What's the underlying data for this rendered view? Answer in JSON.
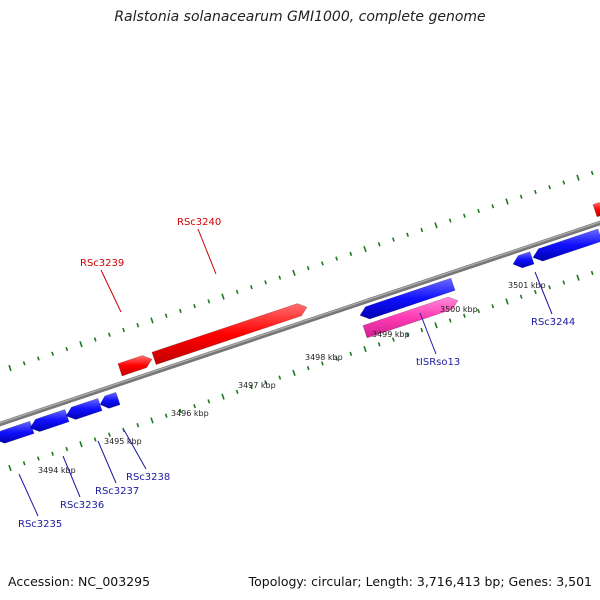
{
  "title": "Ralstonia solanacearum GMI1000, complete genome",
  "footer": {
    "accession": "Accession: NC_003295",
    "summary": "Topology: circular; Length: 3,716,413 bp; Genes: 3,501"
  },
  "colors": {
    "forward_gene": "#ff0000",
    "reverse_gene": "#0000ff",
    "mobile_element": "#ff3ab4",
    "backbone": "#777777",
    "tick": "#1f7a1f",
    "ruler_label": "#222222"
  },
  "ruler": [
    {
      "label": "3494 kbp"
    },
    {
      "label": "3495 kbp"
    },
    {
      "label": "3496 kbp"
    },
    {
      "label": "3497 kbp"
    },
    {
      "label": "3498 kbp"
    },
    {
      "label": "3499 kbp"
    },
    {
      "label": "3500 kbp"
    },
    {
      "label": "3501 kbp"
    }
  ],
  "genes": [
    {
      "label": "RSc3239",
      "strand": "forward",
      "color": "#d00000"
    },
    {
      "label": "RSc3240",
      "strand": "forward",
      "color": "#d00000"
    },
    {
      "label": "tISRso13",
      "strand": "reverse",
      "color": "#1a1aa0"
    },
    {
      "label": "RSc3244",
      "strand": "reverse",
      "color": "#1a1aa0"
    },
    {
      "label": "RSc3235",
      "strand": "reverse",
      "color": "#1a1aa0"
    },
    {
      "label": "RSc3236",
      "strand": "reverse",
      "color": "#1a1aa0"
    },
    {
      "label": "RSc3237",
      "strand": "reverse",
      "color": "#1a1aa0"
    },
    {
      "label": "RSc3238",
      "strand": "reverse",
      "color": "#1a1aa0"
    }
  ]
}
